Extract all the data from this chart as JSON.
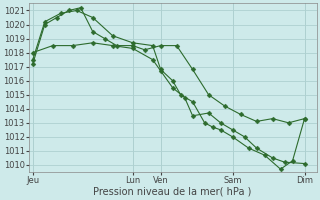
{
  "xlabel": "Pression niveau de la mer( hPa )",
  "background_color": "#ceeaea",
  "grid_color": "#aed0d0",
  "line_color": "#2d6b2d",
  "marker_size": 2.5,
  "ylim": [
    1009.5,
    1021.5
  ],
  "yticks": [
    1010,
    1011,
    1012,
    1013,
    1014,
    1015,
    1016,
    1017,
    1018,
    1019,
    1020,
    1021
  ],
  "xlim": [
    -0.1,
    7.1
  ],
  "tick_positions": [
    0,
    2.5,
    3.2,
    5.0,
    6.8
  ],
  "tick_labels": [
    "Jeu",
    "Lun",
    "Ven",
    "Sam",
    "Dim"
  ],
  "series": [
    {
      "x": [
        0.0,
        0.3,
        0.6,
        0.9,
        1.2,
        1.5,
        1.8,
        2.1,
        2.5,
        2.8,
        3.2,
        3.6,
        4.0,
        4.4,
        4.8,
        5.2,
        5.6,
        6.0,
        6.4,
        6.8
      ],
      "y": [
        1017.2,
        1020.0,
        1020.5,
        1021.0,
        1021.2,
        1019.5,
        1019.0,
        1018.5,
        1018.5,
        1018.2,
        1018.5,
        1018.5,
        1016.8,
        1015.0,
        1014.2,
        1013.6,
        1013.1,
        1013.3,
        1013.0,
        1013.3
      ]
    },
    {
      "x": [
        0.0,
        0.3,
        0.7,
        1.1,
        1.5,
        2.0,
        2.5,
        3.0,
        3.2,
        3.5,
        3.7,
        4.0,
        4.3,
        4.5,
        4.7,
        5.0,
        5.4,
        5.8,
        6.2,
        6.5,
        6.8
      ],
      "y": [
        1017.5,
        1020.2,
        1020.8,
        1021.0,
        1020.5,
        1019.2,
        1018.7,
        1018.5,
        1016.8,
        1016.0,
        1015.0,
        1014.5,
        1013.0,
        1012.7,
        1012.5,
        1012.0,
        1011.2,
        1010.7,
        1009.7,
        1010.3,
        1013.3
      ]
    },
    {
      "x": [
        0.0,
        0.5,
        1.0,
        1.5,
        2.0,
        2.5,
        3.0,
        3.2,
        3.5,
        3.8,
        4.0,
        4.4,
        4.7,
        5.0,
        5.3,
        5.6,
        6.0,
        6.3,
        6.8
      ],
      "y": [
        1018.0,
        1018.5,
        1018.5,
        1018.7,
        1018.5,
        1018.3,
        1017.5,
        1016.7,
        1015.5,
        1014.8,
        1013.5,
        1013.7,
        1013.0,
        1012.5,
        1012.0,
        1011.2,
        1010.5,
        1010.2,
        1010.1
      ]
    }
  ]
}
